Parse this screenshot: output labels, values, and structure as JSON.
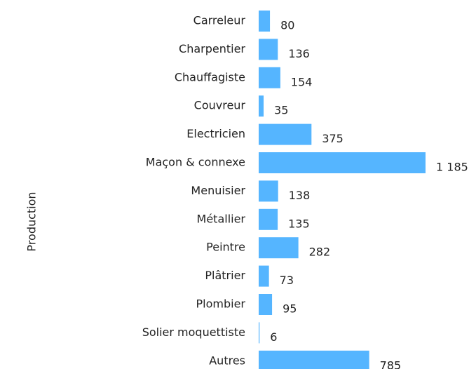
{
  "chart_data": {
    "type": "bar",
    "orientation": "horizontal",
    "y_label": "Production",
    "categories": [
      "Carreleur",
      "Charpentier",
      "Chauffagiste",
      "Couvreur",
      "Electricien",
      "Maçon & connexe",
      "Menuisier",
      "Métallier",
      "Peintre",
      "Plâtrier",
      "Plombier",
      "Solier moquettiste",
      "Autres"
    ],
    "values": [
      80,
      136,
      154,
      35,
      375,
      1185,
      138,
      135,
      282,
      73,
      95,
      6,
      785
    ],
    "value_labels": [
      "80",
      "136",
      "154",
      "35",
      "375",
      "1 185",
      "138",
      "135",
      "282",
      "73",
      "95",
      "6",
      "785"
    ],
    "color": "#55b5ff"
  }
}
